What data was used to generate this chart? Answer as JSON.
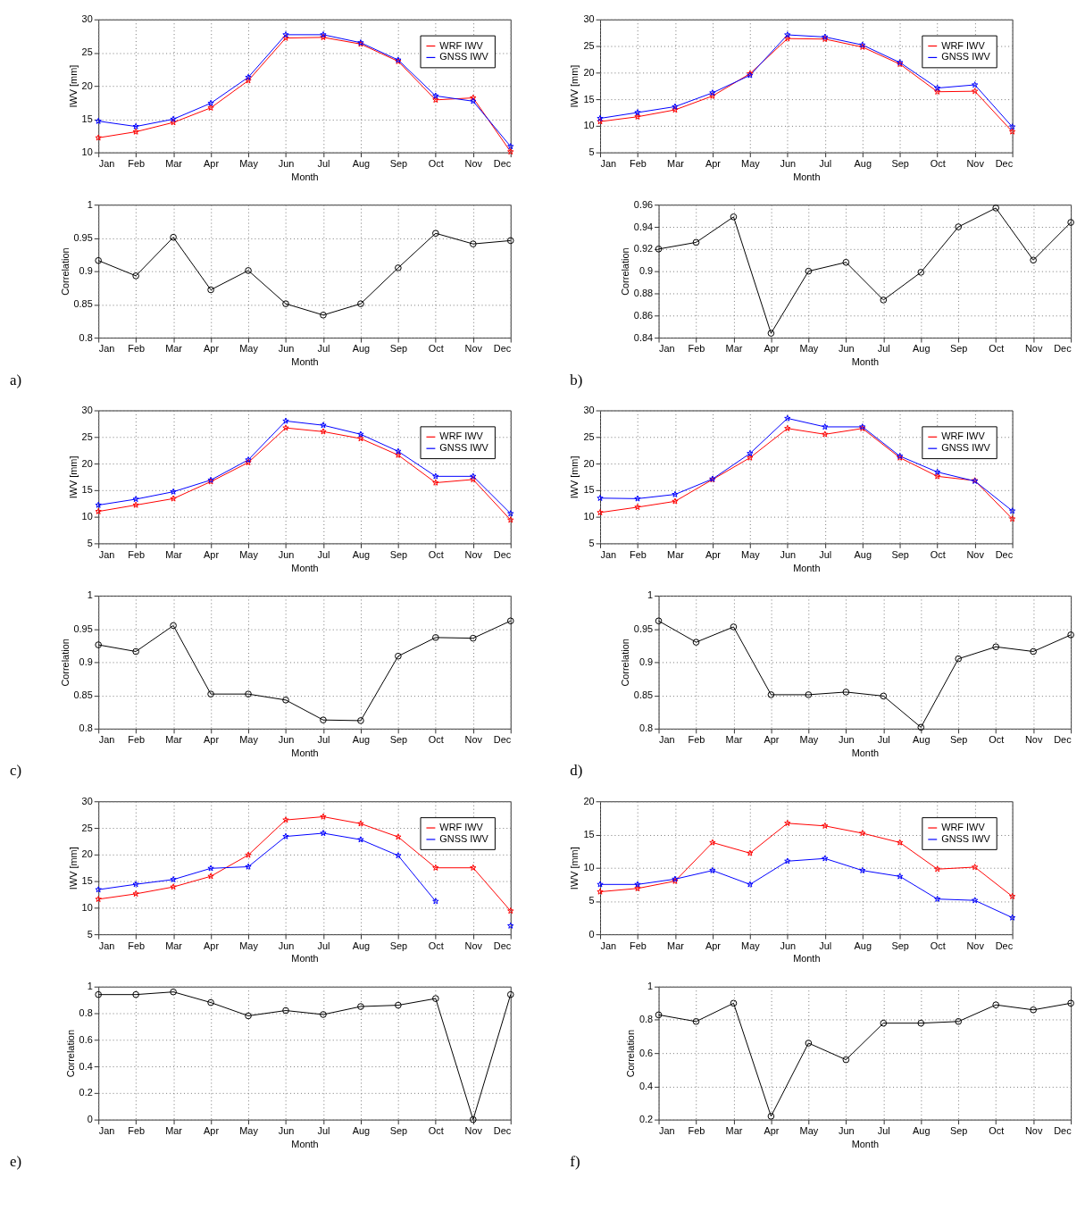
{
  "chart_data": [
    {
      "type": "line",
      "xlabel": "Month",
      "ylabel": "IWV [mm]",
      "categories": [
        "Jan",
        "Feb",
        "Mar",
        "Apr",
        "May",
        "Jun",
        "Jul",
        "Aug",
        "Sep",
        "Oct",
        "Nov",
        "Dec"
      ],
      "ylim": [
        10,
        30
      ],
      "yticks": [
        10,
        15,
        20,
        25,
        30
      ],
      "grid": true,
      "legend": "top right",
      "marker": "star",
      "line_style": "solid",
      "series": [
        {
          "name": "WRF IWV",
          "color": "#ff0000",
          "values": [
            12.2,
            13.1,
            14.5,
            16.7,
            20.8,
            27.2,
            27.3,
            26.3,
            23.7,
            17.9,
            18.2,
            10.1
          ]
        },
        {
          "name": "GNSS IWV",
          "color": "#0000ff",
          "values": [
            14.7,
            13.9,
            15.0,
            17.4,
            21.3,
            27.7,
            27.7,
            26.5,
            23.9,
            18.5,
            17.7,
            10.9
          ]
        }
      ]
    },
    {
      "type": "line",
      "xlabel": "Month",
      "ylabel": "IWV [mm]",
      "categories": [
        "Jan",
        "Feb",
        "Mar",
        "Apr",
        "May",
        "Jun",
        "Jul",
        "Aug",
        "Sep",
        "Oct",
        "Nov",
        "Dec"
      ],
      "ylim": [
        5,
        30
      ],
      "yticks": [
        5,
        10,
        15,
        20,
        25,
        30
      ],
      "grid": true,
      "legend": "top right",
      "marker": "star",
      "line_style": "solid",
      "series": [
        {
          "name": "WRF IWV",
          "color": "#ff0000",
          "values": [
            10.8,
            11.7,
            13.0,
            15.6,
            19.8,
            26.4,
            26.3,
            24.8,
            21.6,
            16.4,
            16.5,
            8.9
          ]
        },
        {
          "name": "GNSS IWV",
          "color": "#0000ff",
          "values": [
            11.4,
            12.5,
            13.6,
            16.2,
            19.5,
            27.1,
            26.7,
            25.2,
            21.9,
            17.1,
            17.7,
            9.8
          ]
        }
      ]
    },
    {
      "type": "line",
      "xlabel": "Month",
      "ylabel": "Correlation",
      "annotations": [
        "a)"
      ],
      "categories": [
        "Jan",
        "Feb",
        "Mar",
        "Apr",
        "May",
        "Jun",
        "Jul",
        "Aug",
        "Sep",
        "Oct",
        "Nov",
        "Dec"
      ],
      "ylim": [
        0.8,
        1
      ],
      "yticks": [
        0.8,
        0.85,
        0.9,
        0.95,
        1
      ],
      "grid": true,
      "marker": "circle",
      "line_style": "solid",
      "series": [
        {
          "color": "#000000",
          "values": [
            0.916,
            0.893,
            0.951,
            0.872,
            0.901,
            0.851,
            0.834,
            0.851,
            0.905,
            0.957,
            0.941,
            0.946
          ]
        }
      ]
    },
    {
      "type": "line",
      "xlabel": "Month",
      "ylabel": "Correlation",
      "annotations": [
        "b)"
      ],
      "categories": [
        "Jan",
        "Feb",
        "Mar",
        "Apr",
        "May",
        "Jun",
        "Jul",
        "Aug",
        "Sep",
        "Oct",
        "Nov",
        "Dec"
      ],
      "ylim": [
        0.84,
        0.96
      ],
      "yticks": [
        0.84,
        0.86,
        0.88,
        0.9,
        0.92,
        0.94,
        0.96
      ],
      "grid": true,
      "marker": "circle",
      "line_style": "solid",
      "series": [
        {
          "color": "#000000",
          "values": [
            0.92,
            0.926,
            0.949,
            0.844,
            0.9,
            0.908,
            0.874,
            0.899,
            0.94,
            0.957,
            0.91,
            0.944
          ]
        }
      ]
    },
    {
      "type": "line",
      "xlabel": "Month",
      "ylabel": "IWV [mm]",
      "categories": [
        "Jan",
        "Feb",
        "Mar",
        "Apr",
        "May",
        "Jun",
        "Jul",
        "Aug",
        "Sep",
        "Oct",
        "Nov",
        "Dec"
      ],
      "ylim": [
        5,
        30
      ],
      "yticks": [
        5,
        10,
        15,
        20,
        25,
        30
      ],
      "grid": true,
      "legend": "top right",
      "marker": "star",
      "line_style": "solid",
      "series": [
        {
          "name": "WRF IWV",
          "color": "#ff0000",
          "values": [
            11.0,
            12.2,
            13.4,
            16.6,
            20.2,
            26.7,
            26.0,
            24.7,
            21.6,
            16.4,
            17.0,
            9.4
          ]
        },
        {
          "name": "GNSS IWV",
          "color": "#0000ff",
          "values": [
            12.2,
            13.3,
            14.7,
            16.9,
            20.7,
            28.0,
            27.2,
            25.5,
            22.3,
            17.6,
            17.6,
            10.6
          ]
        }
      ]
    },
    {
      "type": "line",
      "xlabel": "Month",
      "ylabel": "IWV [mm]",
      "categories": [
        "Jan",
        "Feb",
        "Mar",
        "Apr",
        "May",
        "Jun",
        "Jul",
        "Aug",
        "Sep",
        "Oct",
        "Nov",
        "Dec"
      ],
      "ylim": [
        5,
        30
      ],
      "yticks": [
        5,
        10,
        15,
        20,
        25,
        30
      ],
      "grid": true,
      "legend": "top right",
      "marker": "star",
      "line_style": "solid",
      "series": [
        {
          "name": "WRF IWV",
          "color": "#ff0000",
          "values": [
            10.8,
            11.8,
            12.9,
            17.0,
            21.1,
            26.6,
            25.5,
            26.6,
            21.1,
            17.6,
            16.8,
            9.6
          ]
        },
        {
          "name": "GNSS IWV",
          "color": "#0000ff",
          "values": [
            13.5,
            13.4,
            14.2,
            17.1,
            21.9,
            28.5,
            26.9,
            26.9,
            21.4,
            18.4,
            16.7,
            11.1
          ]
        }
      ]
    },
    {
      "type": "line",
      "xlabel": "Month",
      "ylabel": "Correlation",
      "annotations": [
        "c)"
      ],
      "categories": [
        "Jan",
        "Feb",
        "Mar",
        "Apr",
        "May",
        "Jun",
        "Jul",
        "Aug",
        "Sep",
        "Oct",
        "Nov",
        "Dec"
      ],
      "ylim": [
        0.8,
        1
      ],
      "yticks": [
        0.8,
        0.85,
        0.9,
        0.95,
        1
      ],
      "grid": true,
      "marker": "circle",
      "line_style": "solid",
      "series": [
        {
          "color": "#000000",
          "values": [
            0.926,
            0.916,
            0.955,
            0.852,
            0.852,
            0.843,
            0.813,
            0.812,
            0.909,
            0.937,
            0.936,
            0.962
          ]
        }
      ]
    },
    {
      "type": "line",
      "xlabel": "Month",
      "ylabel": "Correlation",
      "annotations": [
        "d)"
      ],
      "categories": [
        "Jan",
        "Feb",
        "Mar",
        "Apr",
        "May",
        "Jun",
        "Jul",
        "Aug",
        "Sep",
        "Oct",
        "Nov",
        "Dec"
      ],
      "ylim": [
        0.8,
        1
      ],
      "yticks": [
        0.8,
        0.85,
        0.9,
        0.95,
        1
      ],
      "grid": true,
      "marker": "circle",
      "line_style": "solid",
      "series": [
        {
          "color": "#000000",
          "values": [
            0.962,
            0.93,
            0.953,
            0.851,
            0.851,
            0.855,
            0.849,
            0.802,
            0.905,
            0.923,
            0.916,
            0.941
          ]
        }
      ]
    },
    {
      "type": "line",
      "xlabel": "Month",
      "ylabel": "IWV [mm]",
      "categories": [
        "Jan",
        "Feb",
        "Mar",
        "Apr",
        "May",
        "Jun",
        "Jul",
        "Aug",
        "Sep",
        "Oct",
        "Nov",
        "Dec"
      ],
      "ylim": [
        5,
        30
      ],
      "yticks": [
        5,
        10,
        15,
        20,
        25,
        30
      ],
      "grid": true,
      "legend": "top right",
      "marker": "star",
      "line_style": "solid",
      "series": [
        {
          "name": "WRF IWV",
          "color": "#ff0000",
          "values": [
            11.6,
            12.6,
            13.9,
            15.9,
            19.9,
            26.5,
            27.1,
            25.8,
            23.3,
            17.5,
            17.5,
            9.4
          ]
        },
        {
          "name": "GNSS IWV",
          "color": "#0000ff",
          "values": [
            13.4,
            14.4,
            15.3,
            17.4,
            17.7,
            23.4,
            24.0,
            22.8,
            19.8,
            11.2,
            null,
            6.6
          ]
        }
      ]
    },
    {
      "type": "line",
      "xlabel": "Month",
      "ylabel": "IWV [mm]",
      "categories": [
        "Jan",
        "Feb",
        "Mar",
        "Apr",
        "May",
        "Jun",
        "Jul",
        "Aug",
        "Sep",
        "Oct",
        "Nov",
        "Dec"
      ],
      "ylim": [
        0,
        20
      ],
      "yticks": [
        0,
        5,
        10,
        15,
        20
      ],
      "grid": true,
      "legend": "top right",
      "marker": "star",
      "line_style": "solid",
      "series": [
        {
          "name": "WRF IWV",
          "color": "#ff0000",
          "values": [
            6.4,
            6.9,
            8.0,
            13.8,
            12.2,
            16.7,
            16.3,
            15.2,
            13.8,
            9.8,
            10.1,
            5.7
          ]
        },
        {
          "name": "GNSS IWV",
          "color": "#0000ff",
          "values": [
            7.5,
            7.5,
            8.3,
            9.6,
            7.5,
            11.0,
            11.4,
            9.6,
            8.7,
            5.3,
            5.1,
            2.5
          ]
        }
      ]
    },
    {
      "type": "line",
      "xlabel": "Month",
      "ylabel": "Correlation",
      "annotations": [
        "e)"
      ],
      "categories": [
        "Jan",
        "Feb",
        "Mar",
        "Apr",
        "May",
        "Jun",
        "Jul",
        "Aug",
        "Sep",
        "Oct",
        "Nov",
        "Dec"
      ],
      "ylim": [
        0,
        1
      ],
      "yticks": [
        0,
        0.2,
        0.4,
        0.6,
        0.8,
        1
      ],
      "grid": true,
      "marker": "circle",
      "line_style": "solid",
      "series": [
        {
          "color": "#000000",
          "values": [
            0.94,
            0.94,
            0.96,
            0.88,
            0.78,
            0.82,
            0.79,
            0.85,
            0.86,
            0.91,
            0.0,
            0.94
          ]
        }
      ]
    },
    {
      "type": "line",
      "xlabel": "Month",
      "ylabel": "Correlation",
      "annotations": [
        "f)"
      ],
      "categories": [
        "Jan",
        "Feb",
        "Mar",
        "Apr",
        "May",
        "Jun",
        "Jul",
        "Aug",
        "Sep",
        "Oct",
        "Nov",
        "Dec"
      ],
      "ylim": [
        0.2,
        1
      ],
      "yticks": [
        0.2,
        0.4,
        0.6,
        0.8,
        1
      ],
      "grid": true,
      "marker": "circle",
      "line_style": "solid",
      "series": [
        {
          "color": "#000000",
          "values": [
            0.83,
            0.79,
            0.9,
            0.22,
            0.66,
            0.56,
            0.78,
            0.78,
            0.79,
            0.89,
            0.86,
            0.9
          ]
        }
      ]
    }
  ]
}
